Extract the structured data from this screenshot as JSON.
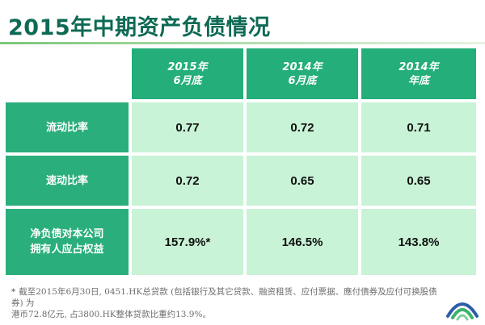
{
  "title": "2015年中期资产负债情况",
  "columns": [
    {
      "line1": "2015年",
      "line2": "6月底"
    },
    {
      "line1": "2014年",
      "line2": "6月底"
    },
    {
      "line1": "2014年",
      "line2": "年底"
    }
  ],
  "rows": [
    {
      "label_line1": "流动比率",
      "label_line2": "",
      "values": [
        "0.77",
        "0.72",
        "0.71"
      ]
    },
    {
      "label_line1": "速动比率",
      "label_line2": "",
      "values": [
        "0.72",
        "0.65",
        "0.65"
      ]
    },
    {
      "label_line1": "净负债对本公司",
      "label_line2": "拥有人应占权益",
      "values": [
        "157.9%*",
        "146.5%",
        "143.8%"
      ]
    }
  ],
  "footnote": {
    "marker": "*",
    "line1": "截至2015年6月30日, 0451.HK总贷款 (包括银行及其它贷款、融资租赁、应付票据、應付債券及应付可换股债券) 为",
    "line2": "港币72.8亿元, 占3800.HK整体贷款比重约13.9%。"
  },
  "logo_icon": "company-logo-icon"
}
